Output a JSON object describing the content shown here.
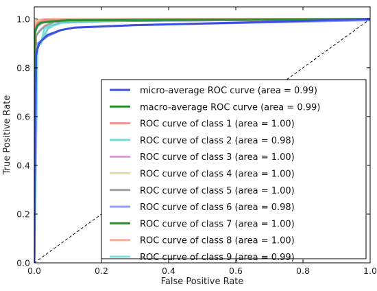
{
  "chart_data": {
    "type": "line",
    "title": "",
    "xlabel": "False Positive Rate",
    "ylabel": "True Positive Rate",
    "xlim": [
      0,
      1.0
    ],
    "ylim": [
      0,
      1.05
    ],
    "xticks": [
      "0.0",
      "0.2",
      "0.4",
      "0.6",
      "0.8",
      "1.0"
    ],
    "yticks": [
      "0.0",
      "0.2",
      "0.4",
      "0.6",
      "0.8",
      "1.0"
    ],
    "legend_position": "lower-right",
    "grid": false,
    "series": [
      {
        "name": "micro-average ROC curve (area = 0.99)",
        "color": "#3b4fe0",
        "width": 3,
        "alpha": 1,
        "x": [
          0,
          0.005,
          0.01,
          0.015,
          0.02,
          0.04,
          0.06,
          0.08,
          0.12,
          0.3,
          0.6,
          1.0
        ],
        "y": [
          0,
          0.85,
          0.88,
          0.9,
          0.91,
          0.935,
          0.945,
          0.955,
          0.965,
          0.975,
          0.985,
          1.0
        ]
      },
      {
        "name": "macro-average ROC curve (area = 0.99)",
        "color": "#23922a",
        "width": 3,
        "alpha": 1,
        "x": [
          0,
          0.002,
          0.005,
          0.01,
          0.02,
          0.05,
          0.1,
          1.0
        ],
        "y": [
          0,
          0.94,
          0.96,
          0.975,
          0.985,
          0.99,
          0.995,
          1.0
        ]
      },
      {
        "name": "ROC curve of class 1 (area = 1.00)",
        "color": "#f08080",
        "width": 3,
        "alpha": 0.85,
        "x": [
          0,
          0.003,
          0.01,
          0.03,
          1.0
        ],
        "y": [
          0,
          0.97,
          0.985,
          0.995,
          1.0
        ]
      },
      {
        "name": "ROC curve of class 2 (area = 0.98)",
        "color": "#5fd0cc",
        "width": 3,
        "alpha": 0.85,
        "x": [
          0,
          0.005,
          0.01,
          0.015,
          0.02,
          0.04,
          0.06,
          0.08,
          0.3,
          1.0
        ],
        "y": [
          0,
          0.88,
          0.89,
          0.9,
          0.9,
          0.96,
          0.975,
          0.985,
          0.995,
          1.0
        ]
      },
      {
        "name": "ROC curve of class 3 (area = 1.00)",
        "color": "#da70d6",
        "width": 3,
        "alpha": 0.75,
        "x": [
          0,
          0.003,
          0.01,
          0.03,
          1.0
        ],
        "y": [
          0,
          0.95,
          0.97,
          0.99,
          1.0
        ]
      },
      {
        "name": "ROC curve of class 4 (area = 1.00)",
        "color": "#e3da8c",
        "width": 3,
        "alpha": 0.85,
        "x": [
          0,
          0.003,
          0.01,
          0.04,
          1.0
        ],
        "y": [
          0,
          0.97,
          0.99,
          0.995,
          1.0
        ]
      },
      {
        "name": "ROC curve of class 5 (area = 1.00)",
        "color": "#8e8e8e",
        "width": 3,
        "alpha": 0.85,
        "x": [
          0,
          0.005,
          0.015,
          0.03,
          0.06,
          1.0
        ],
        "y": [
          0,
          0.93,
          0.95,
          0.97,
          0.99,
          1.0
        ]
      },
      {
        "name": "ROC curve of class 6 (area = 0.98)",
        "color": "#7b8cf0",
        "width": 3,
        "alpha": 0.85,
        "x": [
          0,
          0.005,
          0.01,
          0.02,
          0.04,
          0.08,
          0.12,
          0.3,
          1.0
        ],
        "y": [
          0,
          0.89,
          0.9,
          0.91,
          0.93,
          0.955,
          0.965,
          0.975,
          0.995
        ]
      },
      {
        "name": "ROC curve of class 7 (area = 1.00)",
        "color": "#1f7a1f",
        "width": 3,
        "alpha": 0.9,
        "x": [
          0,
          0.002,
          0.01,
          0.03,
          1.0
        ],
        "y": [
          0,
          0.96,
          0.98,
          0.99,
          1.0
        ]
      },
      {
        "name": "ROC curve of class 8 (area = 1.00)",
        "color": "#f4a088",
        "width": 3,
        "alpha": 0.85,
        "x": [
          0,
          0.003,
          0.01,
          0.03,
          1.0
        ],
        "y": [
          0,
          0.99,
          0.995,
          1.0,
          1.0
        ]
      },
      {
        "name": "ROC curve of class 9 (area = 0.99)",
        "color": "#70dcd4",
        "width": 3,
        "alpha": 0.9,
        "x": [
          0,
          0.01,
          0.02,
          0.025,
          0.03,
          0.05,
          0.08,
          0.3,
          1.0
        ],
        "y": [
          0,
          0.9,
          0.9,
          0.93,
          0.96,
          0.975,
          0.985,
          1.0,
          1.0
        ]
      }
    ],
    "reference_line": {
      "x": [
        0,
        1
      ],
      "y": [
        0,
        1
      ],
      "style": "dashed",
      "color": "#000000"
    }
  }
}
